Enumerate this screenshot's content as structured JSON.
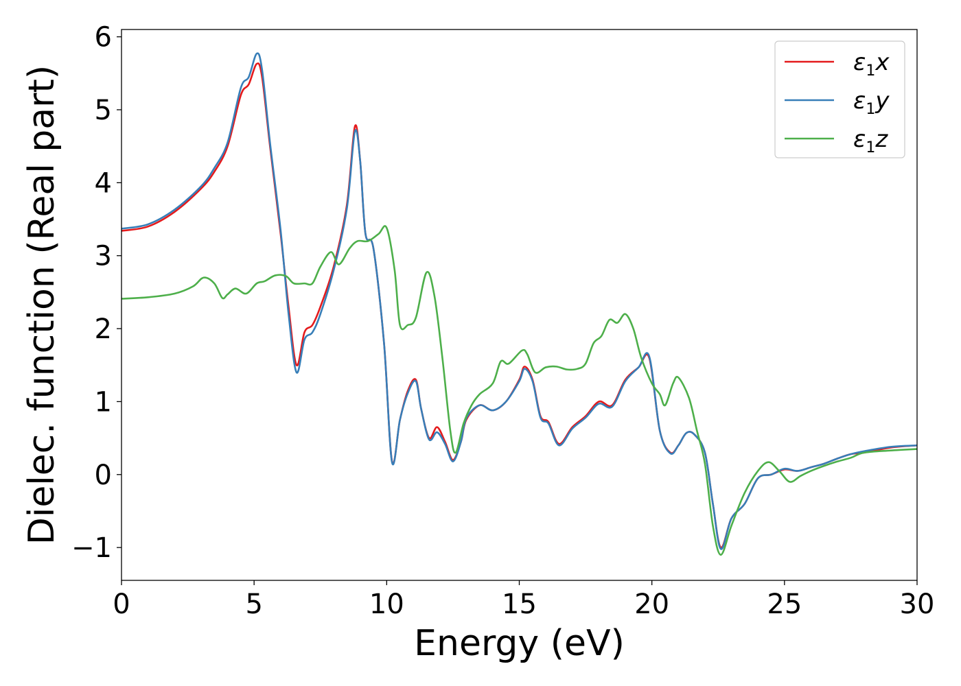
{
  "chart_data": {
    "type": "line",
    "xlabel": "Energy (eV)",
    "ylabel": "Dielec. function (Real part)",
    "xlim": [
      0,
      30
    ],
    "ylim": [
      -1.45,
      6.1
    ],
    "xticks": [
      0,
      5,
      10,
      15,
      20,
      25,
      30
    ],
    "yticks": [
      -1,
      0,
      1,
      2,
      3,
      4,
      5,
      6
    ],
    "grid": false,
    "legend_position": "top-right",
    "series": [
      {
        "name": "ε1x",
        "legend_base": "ε",
        "legend_sub": "1",
        "legend_var": "x",
        "color": "#e41a1c",
        "points": [
          [
            0,
            3.34
          ],
          [
            1,
            3.4
          ],
          [
            2,
            3.6
          ],
          [
            3,
            3.92
          ],
          [
            3.5,
            4.15
          ],
          [
            4,
            4.5
          ],
          [
            4.5,
            5.2
          ],
          [
            4.8,
            5.35
          ],
          [
            5.1,
            5.63
          ],
          [
            5.3,
            5.45
          ],
          [
            5.6,
            4.5
          ],
          [
            6,
            3.3
          ],
          [
            6.3,
            2.3
          ],
          [
            6.6,
            1.5
          ],
          [
            6.9,
            1.95
          ],
          [
            7.2,
            2.05
          ],
          [
            7.5,
            2.3
          ],
          [
            8,
            2.85
          ],
          [
            8.5,
            3.7
          ],
          [
            8.8,
            4.77
          ],
          [
            9,
            4.3
          ],
          [
            9.2,
            3.3
          ],
          [
            9.5,
            3.1
          ],
          [
            9.9,
            1.8
          ],
          [
            10.2,
            0.18
          ],
          [
            10.5,
            0.75
          ],
          [
            10.8,
            1.15
          ],
          [
            11.1,
            1.3
          ],
          [
            11.3,
            0.9
          ],
          [
            11.6,
            0.5
          ],
          [
            11.9,
            0.65
          ],
          [
            12.2,
            0.45
          ],
          [
            12.5,
            0.2
          ],
          [
            12.8,
            0.45
          ],
          [
            13,
            0.75
          ],
          [
            13.5,
            0.95
          ],
          [
            14,
            0.88
          ],
          [
            14.5,
            1.0
          ],
          [
            15,
            1.3
          ],
          [
            15.2,
            1.48
          ],
          [
            15.5,
            1.3
          ],
          [
            15.8,
            0.8
          ],
          [
            16.1,
            0.72
          ],
          [
            16.5,
            0.42
          ],
          [
            17,
            0.65
          ],
          [
            17.5,
            0.8
          ],
          [
            18,
            1.0
          ],
          [
            18.5,
            0.95
          ],
          [
            19,
            1.3
          ],
          [
            19.5,
            1.47
          ],
          [
            19.9,
            1.6
          ],
          [
            20.3,
            0.6
          ],
          [
            20.7,
            0.3
          ],
          [
            21,
            0.4
          ],
          [
            21.3,
            0.57
          ],
          [
            21.6,
            0.55
          ],
          [
            22,
            0.3
          ],
          [
            22.3,
            -0.4
          ],
          [
            22.6,
            -1.0
          ],
          [
            23,
            -0.6
          ],
          [
            23.5,
            -0.4
          ],
          [
            24,
            -0.05
          ],
          [
            24.5,
            0.0
          ],
          [
            25,
            0.07
          ],
          [
            25.5,
            0.05
          ],
          [
            26,
            0.1
          ],
          [
            26.5,
            0.15
          ],
          [
            27,
            0.22
          ],
          [
            27.5,
            0.28
          ],
          [
            28,
            0.3
          ],
          [
            29,
            0.37
          ],
          [
            30,
            0.4
          ]
        ]
      },
      {
        "name": "ε1y",
        "legend_base": "ε",
        "legend_sub": "1",
        "legend_var": "y",
        "color": "#377eb8",
        "points": [
          [
            0,
            3.37
          ],
          [
            1,
            3.43
          ],
          [
            2,
            3.63
          ],
          [
            3,
            3.95
          ],
          [
            3.5,
            4.2
          ],
          [
            4,
            4.55
          ],
          [
            4.5,
            5.3
          ],
          [
            4.8,
            5.45
          ],
          [
            5.1,
            5.77
          ],
          [
            5.3,
            5.55
          ],
          [
            5.6,
            4.55
          ],
          [
            6,
            3.35
          ],
          [
            6.3,
            2.2
          ],
          [
            6.6,
            1.4
          ],
          [
            6.9,
            1.85
          ],
          [
            7.2,
            1.95
          ],
          [
            7.5,
            2.2
          ],
          [
            8,
            2.8
          ],
          [
            8.5,
            3.65
          ],
          [
            8.8,
            4.7
          ],
          [
            9,
            4.3
          ],
          [
            9.2,
            3.3
          ],
          [
            9.5,
            3.1
          ],
          [
            9.9,
            1.8
          ],
          [
            10.2,
            0.17
          ],
          [
            10.5,
            0.75
          ],
          [
            10.8,
            1.12
          ],
          [
            11.1,
            1.28
          ],
          [
            11.3,
            0.9
          ],
          [
            11.6,
            0.48
          ],
          [
            11.9,
            0.58
          ],
          [
            12.2,
            0.42
          ],
          [
            12.5,
            0.18
          ],
          [
            12.8,
            0.45
          ],
          [
            13,
            0.77
          ],
          [
            13.5,
            0.95
          ],
          [
            14,
            0.88
          ],
          [
            14.5,
            1.0
          ],
          [
            15,
            1.28
          ],
          [
            15.2,
            1.45
          ],
          [
            15.5,
            1.28
          ],
          [
            15.8,
            0.78
          ],
          [
            16.1,
            0.7
          ],
          [
            16.5,
            0.4
          ],
          [
            17,
            0.63
          ],
          [
            17.5,
            0.78
          ],
          [
            18,
            0.97
          ],
          [
            18.5,
            0.93
          ],
          [
            19,
            1.28
          ],
          [
            19.5,
            1.47
          ],
          [
            19.9,
            1.62
          ],
          [
            20.3,
            0.6
          ],
          [
            20.7,
            0.29
          ],
          [
            21,
            0.4
          ],
          [
            21.3,
            0.57
          ],
          [
            21.6,
            0.55
          ],
          [
            22,
            0.3
          ],
          [
            22.3,
            -0.4
          ],
          [
            22.6,
            -1.02
          ],
          [
            23,
            -0.6
          ],
          [
            23.5,
            -0.4
          ],
          [
            24,
            -0.05
          ],
          [
            24.5,
            0.0
          ],
          [
            25,
            0.08
          ],
          [
            25.5,
            0.05
          ],
          [
            26,
            0.1
          ],
          [
            26.5,
            0.15
          ],
          [
            27,
            0.22
          ],
          [
            27.5,
            0.28
          ],
          [
            28,
            0.32
          ],
          [
            29,
            0.38
          ],
          [
            30,
            0.4
          ]
        ]
      },
      {
        "name": "ε1z",
        "legend_base": "ε",
        "legend_sub": "1",
        "legend_var": "z",
        "color": "#4daf4a",
        "points": [
          [
            0,
            2.41
          ],
          [
            1,
            2.43
          ],
          [
            2,
            2.48
          ],
          [
            2.7,
            2.58
          ],
          [
            3.1,
            2.7
          ],
          [
            3.5,
            2.62
          ],
          [
            3.8,
            2.42
          ],
          [
            4.0,
            2.47
          ],
          [
            4.3,
            2.55
          ],
          [
            4.7,
            2.48
          ],
          [
            5.1,
            2.62
          ],
          [
            5.4,
            2.65
          ],
          [
            5.8,
            2.73
          ],
          [
            6.2,
            2.72
          ],
          [
            6.5,
            2.62
          ],
          [
            6.9,
            2.62
          ],
          [
            7.2,
            2.62
          ],
          [
            7.5,
            2.85
          ],
          [
            7.9,
            3.05
          ],
          [
            8.2,
            2.88
          ],
          [
            8.6,
            3.1
          ],
          [
            8.9,
            3.2
          ],
          [
            9.3,
            3.2
          ],
          [
            9.7,
            3.3
          ],
          [
            10,
            3.38
          ],
          [
            10.3,
            2.8
          ],
          [
            10.5,
            2.05
          ],
          [
            10.8,
            2.05
          ],
          [
            11.1,
            2.15
          ],
          [
            11.5,
            2.77
          ],
          [
            11.8,
            2.45
          ],
          [
            12.1,
            1.6
          ],
          [
            12.4,
            0.6
          ],
          [
            12.6,
            0.3
          ],
          [
            12.9,
            0.7
          ],
          [
            13.2,
            0.95
          ],
          [
            13.5,
            1.1
          ],
          [
            14,
            1.25
          ],
          [
            14.3,
            1.55
          ],
          [
            14.6,
            1.52
          ],
          [
            15.1,
            1.7
          ],
          [
            15.3,
            1.65
          ],
          [
            15.6,
            1.4
          ],
          [
            16,
            1.47
          ],
          [
            16.4,
            1.48
          ],
          [
            16.8,
            1.44
          ],
          [
            17.2,
            1.45
          ],
          [
            17.5,
            1.52
          ],
          [
            17.8,
            1.8
          ],
          [
            18.1,
            1.9
          ],
          [
            18.4,
            2.12
          ],
          [
            18.7,
            2.08
          ],
          [
            19,
            2.2
          ],
          [
            19.3,
            2.0
          ],
          [
            19.6,
            1.6
          ],
          [
            20,
            1.25
          ],
          [
            20.3,
            1.1
          ],
          [
            20.5,
            0.95
          ],
          [
            20.8,
            1.25
          ],
          [
            21,
            1.33
          ],
          [
            21.4,
            1.05
          ],
          [
            21.7,
            0.6
          ],
          [
            22.0,
            0.15
          ],
          [
            22.3,
            -0.7
          ],
          [
            22.6,
            -1.1
          ],
          [
            23,
            -0.7
          ],
          [
            23.5,
            -0.25
          ],
          [
            24,
            0.05
          ],
          [
            24.4,
            0.17
          ],
          [
            24.8,
            0.05
          ],
          [
            25.2,
            -0.1
          ],
          [
            25.6,
            -0.02
          ],
          [
            26,
            0.05
          ],
          [
            26.5,
            0.12
          ],
          [
            27,
            0.18
          ],
          [
            27.5,
            0.23
          ],
          [
            28,
            0.3
          ],
          [
            29,
            0.33
          ],
          [
            30,
            0.35
          ]
        ]
      }
    ]
  }
}
